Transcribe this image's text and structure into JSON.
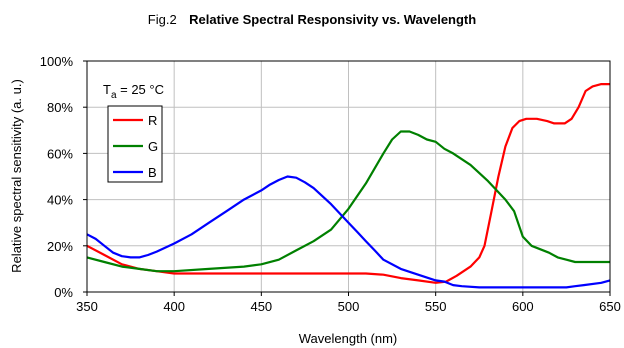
{
  "chart_data": {
    "type": "line",
    "title_prefix": "Fig.2",
    "title": "Relative Spectral Responsivity vs. Wavelength",
    "xlabel": "Wavelength (nm)",
    "ylabel": "Relative spectral sensitivity   (a. u.)",
    "annotation": {
      "main": "T",
      "sub": "a",
      "rest": " = 25 °C"
    },
    "xlim": [
      350,
      650
    ],
    "ylim": [
      0,
      100
    ],
    "x_ticks": [
      "350",
      "400",
      "450",
      "500",
      "550",
      "600",
      "650"
    ],
    "y_ticks": [
      "0%",
      "20%",
      "40%",
      "60%",
      "80%",
      "100%"
    ],
    "grid": true,
    "legend_position": "left, below annotation",
    "series": [
      {
        "name": "R",
        "color": "#ff0000",
        "points": [
          [
            350,
            20
          ],
          [
            360,
            16
          ],
          [
            370,
            12
          ],
          [
            380,
            10
          ],
          [
            390,
            9
          ],
          [
            400,
            8
          ],
          [
            450,
            8
          ],
          [
            500,
            8
          ],
          [
            510,
            8
          ],
          [
            520,
            7.5
          ],
          [
            530,
            6
          ],
          [
            540,
            5
          ],
          [
            550,
            4
          ],
          [
            556,
            4.5
          ],
          [
            562,
            7
          ],
          [
            570,
            11
          ],
          [
            575,
            15
          ],
          [
            578,
            20
          ],
          [
            582,
            35
          ],
          [
            586,
            50
          ],
          [
            590,
            63
          ],
          [
            594,
            71
          ],
          [
            598,
            74
          ],
          [
            602,
            75
          ],
          [
            608,
            75
          ],
          [
            614,
            74
          ],
          [
            618,
            73
          ],
          [
            624,
            73
          ],
          [
            628,
            75
          ],
          [
            632,
            80
          ],
          [
            636,
            87
          ],
          [
            640,
            89
          ],
          [
            645,
            90
          ],
          [
            650,
            90
          ]
        ]
      },
      {
        "name": "G",
        "color": "#008000",
        "points": [
          [
            350,
            15
          ],
          [
            360,
            13
          ],
          [
            370,
            11
          ],
          [
            380,
            10
          ],
          [
            390,
            9
          ],
          [
            400,
            9
          ],
          [
            420,
            10
          ],
          [
            440,
            11
          ],
          [
            450,
            12
          ],
          [
            460,
            14
          ],
          [
            470,
            18
          ],
          [
            480,
            22
          ],
          [
            490,
            27
          ],
          [
            500,
            36
          ],
          [
            510,
            47
          ],
          [
            520,
            60
          ],
          [
            525,
            66
          ],
          [
            530,
            69.5
          ],
          [
            535,
            69.5
          ],
          [
            540,
            68
          ],
          [
            545,
            66
          ],
          [
            550,
            65
          ],
          [
            555,
            62
          ],
          [
            560,
            60
          ],
          [
            570,
            55
          ],
          [
            580,
            48
          ],
          [
            590,
            40
          ],
          [
            595,
            35
          ],
          [
            600,
            24
          ],
          [
            605,
            20
          ],
          [
            615,
            17
          ],
          [
            620,
            15
          ],
          [
            625,
            14
          ],
          [
            630,
            13
          ],
          [
            640,
            13
          ],
          [
            650,
            13
          ]
        ]
      },
      {
        "name": "B",
        "color": "#0000ff",
        "points": [
          [
            350,
            25
          ],
          [
            355,
            23
          ],
          [
            360,
            20
          ],
          [
            365,
            17
          ],
          [
            370,
            15.5
          ],
          [
            375,
            15
          ],
          [
            380,
            15
          ],
          [
            385,
            16
          ],
          [
            390,
            17.5
          ],
          [
            400,
            21
          ],
          [
            410,
            25
          ],
          [
            420,
            30
          ],
          [
            430,
            35
          ],
          [
            440,
            40
          ],
          [
            450,
            44
          ],
          [
            455,
            46.5
          ],
          [
            460,
            48.5
          ],
          [
            465,
            50
          ],
          [
            470,
            49.5
          ],
          [
            475,
            47.5
          ],
          [
            480,
            45
          ],
          [
            490,
            38
          ],
          [
            500,
            30
          ],
          [
            505,
            26
          ],
          [
            510,
            22
          ],
          [
            515,
            18
          ],
          [
            520,
            14
          ],
          [
            530,
            10
          ],
          [
            540,
            7.5
          ],
          [
            550,
            5
          ],
          [
            555,
            4.5
          ],
          [
            560,
            3
          ],
          [
            565,
            2.5
          ],
          [
            575,
            2
          ],
          [
            600,
            2
          ],
          [
            620,
            2
          ],
          [
            625,
            2
          ],
          [
            630,
            2.5
          ],
          [
            635,
            3
          ],
          [
            645,
            4
          ],
          [
            650,
            5
          ]
        ]
      }
    ]
  }
}
